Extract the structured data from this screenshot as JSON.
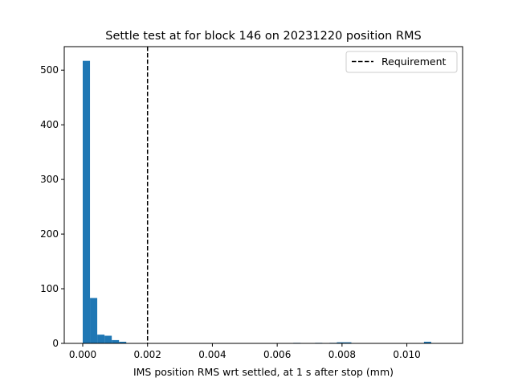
{
  "chart_data": {
    "type": "bar",
    "title": "Settle test at for block 146 on 20231220 position RMS",
    "xlabel": "IMS position RMS wrt settled, at 1 s after stop (mm)",
    "ylabel": "",
    "xlim": [
      -0.00057,
      0.01172
    ],
    "ylim": [
      0,
      543
    ],
    "x_ticks": [
      0.0,
      0.002,
      0.004,
      0.006,
      0.008,
      0.01
    ],
    "x_tick_labels": [
      "0.000",
      "0.002",
      "0.004",
      "0.006",
      "0.008",
      "0.010"
    ],
    "y_ticks": [
      0,
      100,
      200,
      300,
      400,
      500
    ],
    "y_tick_labels": [
      "0",
      "100",
      "200",
      "300",
      "400",
      "500"
    ],
    "bin_width": 0.000224,
    "bins": [
      {
        "start": 0.0,
        "count": 517
      },
      {
        "start": 0.000224,
        "count": 83
      },
      {
        "start": 0.000448,
        "count": 16
      },
      {
        "start": 0.000672,
        "count": 14
      },
      {
        "start": 0.000896,
        "count": 6
      },
      {
        "start": 0.00112,
        "count": 3
      },
      {
        "start": 0.006496,
        "count": 1
      },
      {
        "start": 0.007168,
        "count": 1
      },
      {
        "start": 0.007616,
        "count": 1
      },
      {
        "start": 0.00784,
        "count": 2
      },
      {
        "start": 0.008064,
        "count": 2
      },
      {
        "start": 0.010528,
        "count": 3
      }
    ],
    "bar_color": "#1f77b4",
    "reference_lines": [
      {
        "x": 0.002,
        "style": "dashed",
        "color": "#000000",
        "label": "Requirement"
      }
    ],
    "legend": {
      "position": "top-right",
      "entries": [
        "Requirement"
      ]
    },
    "grid": false
  }
}
